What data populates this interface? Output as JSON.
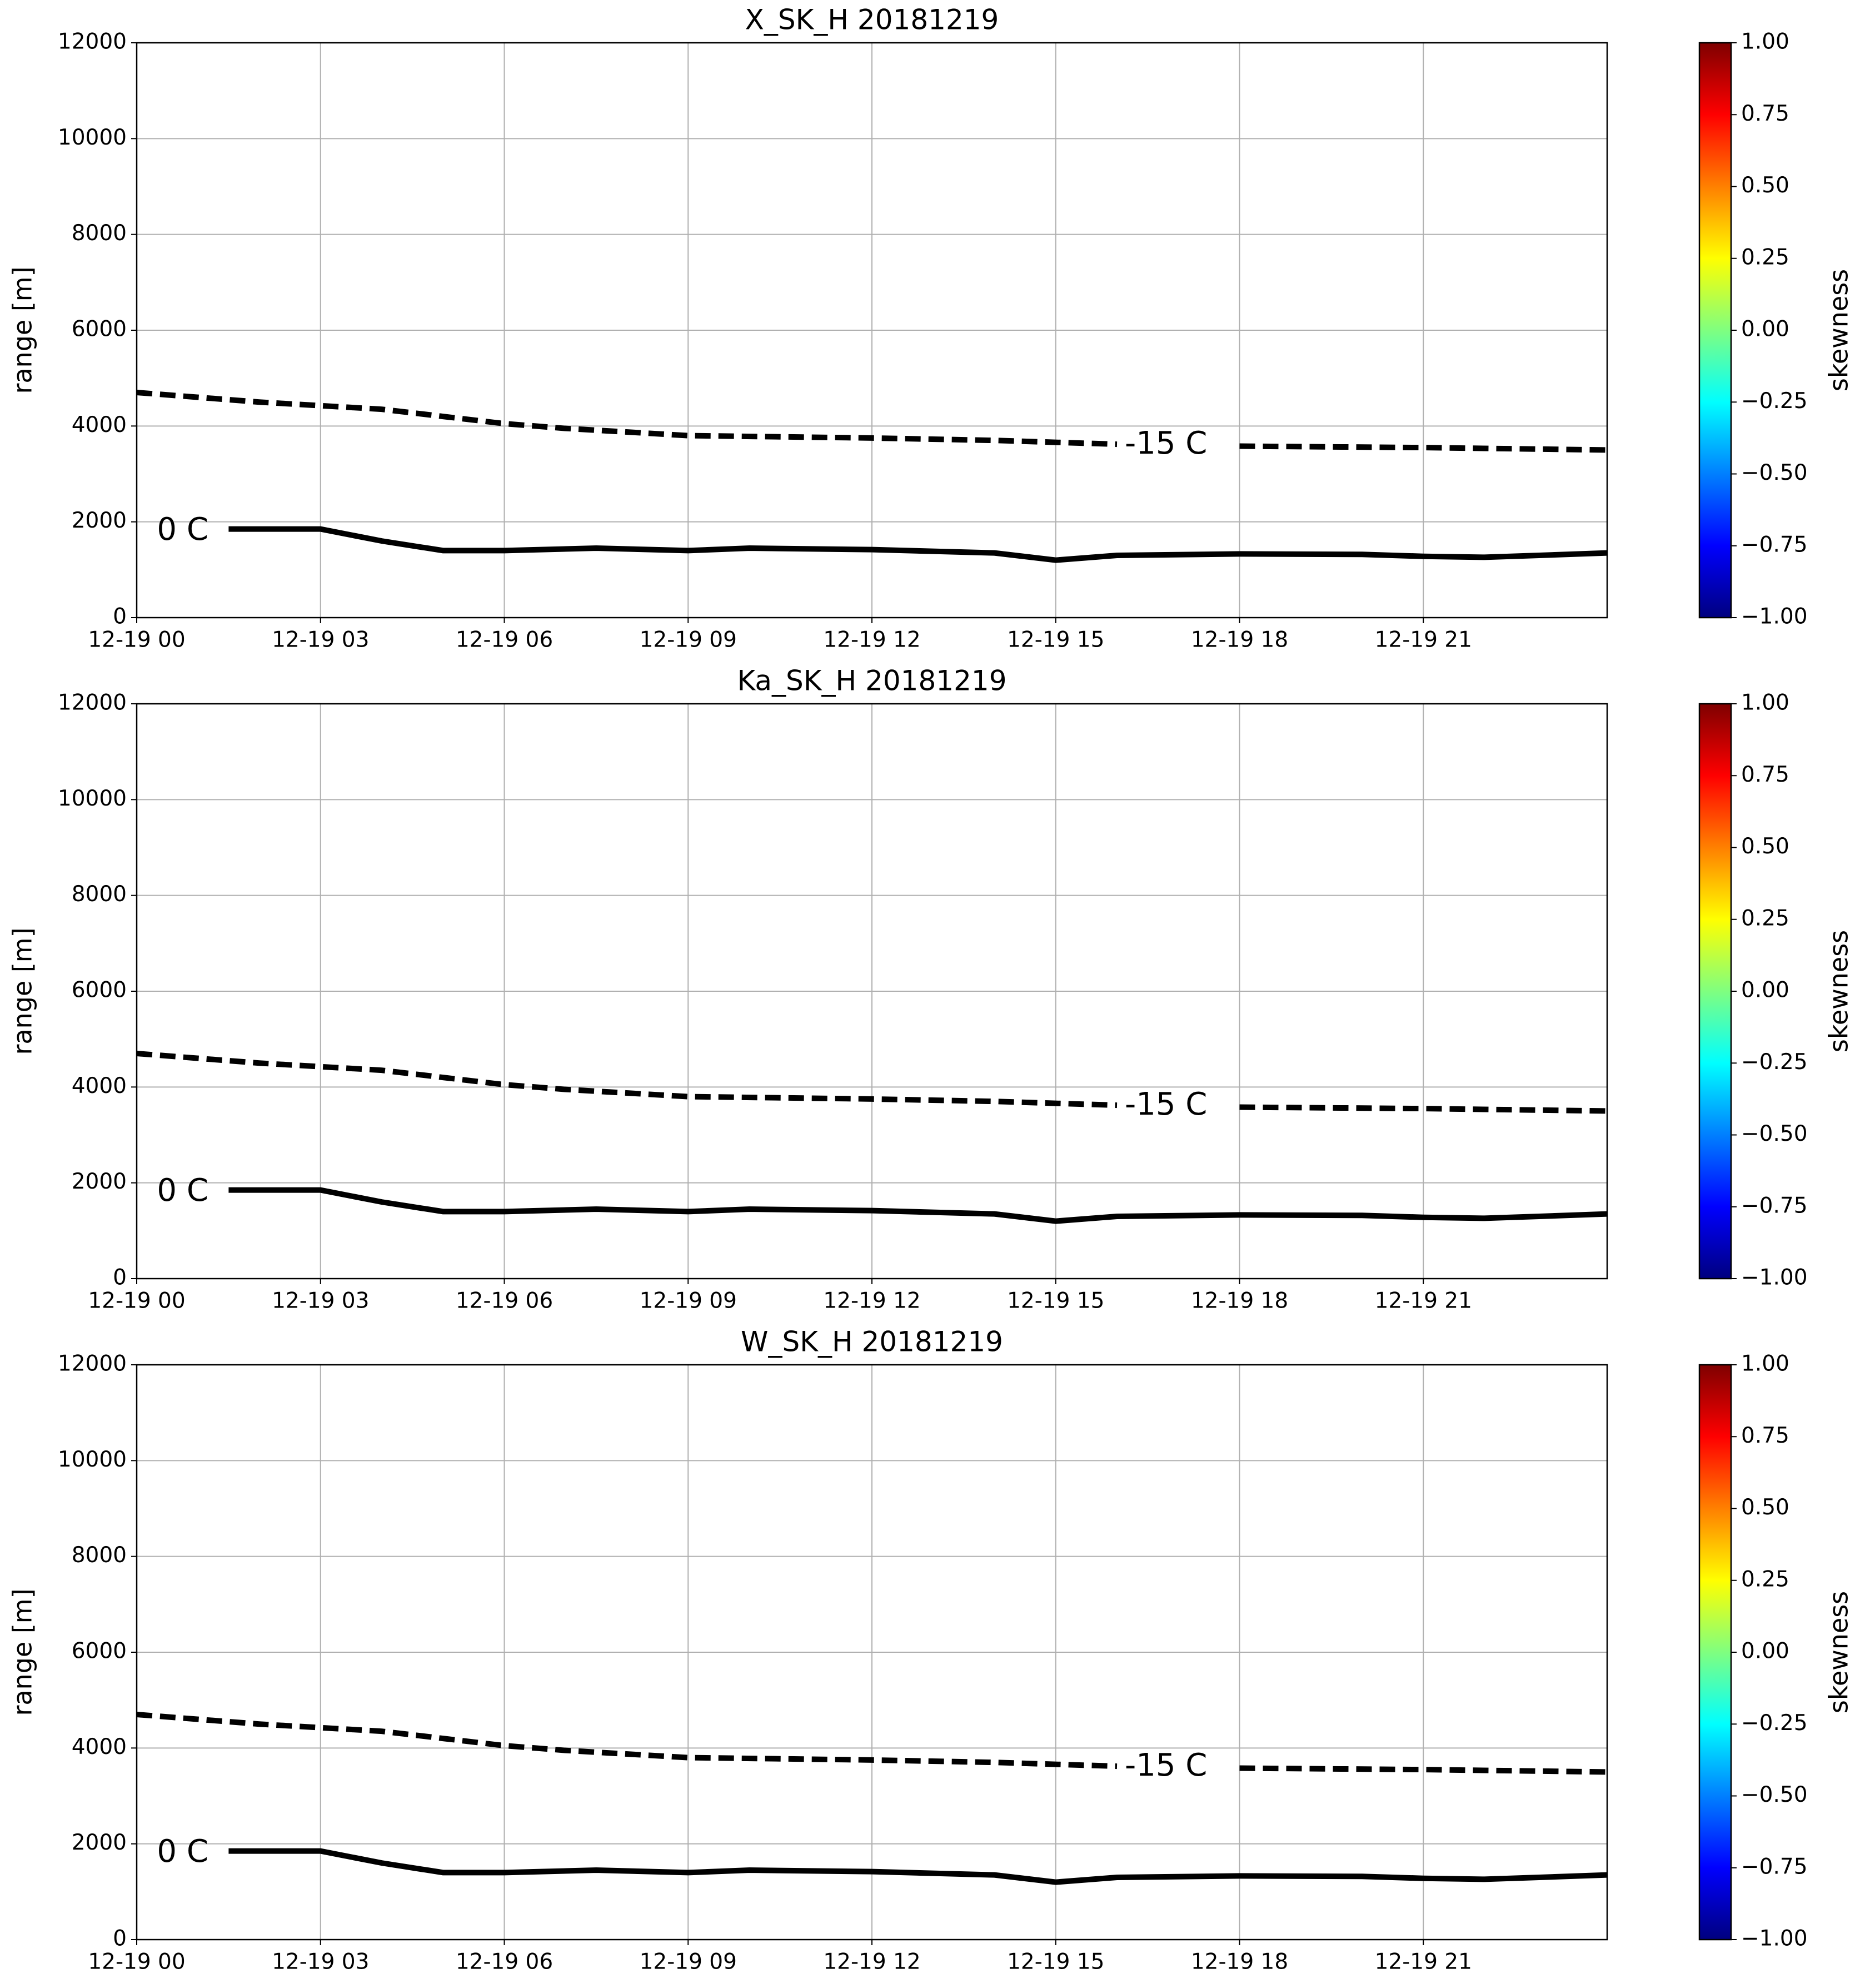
{
  "chart_data": [
    {
      "type": "line",
      "title": "X_SK_H 20181219",
      "ylabel": "range [m]",
      "xlim": [
        0,
        24
      ],
      "xticks": [
        {
          "value": 0,
          "label": "12-19 00"
        },
        {
          "value": 3,
          "label": "12-19 03"
        },
        {
          "value": 6,
          "label": "12-19 06"
        },
        {
          "value": 9,
          "label": "12-19 09"
        },
        {
          "value": 12,
          "label": "12-19 12"
        },
        {
          "value": 15,
          "label": "12-19 15"
        },
        {
          "value": 18,
          "label": "12-19 18"
        },
        {
          "value": 21,
          "label": "12-19 21"
        }
      ],
      "ylim": [
        0,
        12000
      ],
      "yticks": [
        0,
        2000,
        4000,
        6000,
        8000,
        10000,
        12000
      ],
      "grid": true,
      "series": [
        {
          "linestyle": "solid",
          "color": "#000000",
          "x": [
            1.5,
            3,
            4,
            5,
            6,
            7.5,
            9,
            10,
            12,
            14,
            15,
            16,
            18,
            20,
            21,
            22,
            24
          ],
          "values": [
            1850,
            1850,
            1600,
            1400,
            1400,
            1450,
            1400,
            1450,
            1420,
            1350,
            1200,
            1300,
            1330,
            1320,
            1280,
            1260,
            1350
          ]
        },
        {
          "linestyle": "dashed",
          "color": "#000000",
          "x": [
            0,
            2,
            4,
            5,
            6,
            7,
            9,
            12,
            14,
            16,
            17,
            18,
            21,
            24
          ],
          "values": [
            4700,
            4500,
            4350,
            4200,
            4050,
            3950,
            3800,
            3750,
            3700,
            3620,
            null,
            3580,
            3550,
            3500
          ]
        }
      ],
      "annotations": [
        {
          "text": "0 C",
          "x": 0.75,
          "y": 1800
        },
        {
          "text": "-15 C",
          "x": 16.8,
          "y": 3600
        }
      ],
      "colorbar": {
        "label": "skewness",
        "colormap": "jet",
        "lim": [
          -1,
          1
        ],
        "ticks": [
          {
            "value": -1,
            "label": "−1.00"
          },
          {
            "value": -0.75,
            "label": "−0.75"
          },
          {
            "value": -0.5,
            "label": "−0.50"
          },
          {
            "value": -0.25,
            "label": "−0.25"
          },
          {
            "value": 0,
            "label": "0.00"
          },
          {
            "value": 0.25,
            "label": "0.25"
          },
          {
            "value": 0.5,
            "label": "0.50"
          },
          {
            "value": 0.75,
            "label": "0.75"
          },
          {
            "value": 1,
            "label": "1.00"
          }
        ]
      }
    },
    {
      "type": "line",
      "title": "Ka_SK_H 20181219",
      "ylabel": "range [m]",
      "xlim": [
        0,
        24
      ],
      "xticks": [
        {
          "value": 0,
          "label": "12-19 00"
        },
        {
          "value": 3,
          "label": "12-19 03"
        },
        {
          "value": 6,
          "label": "12-19 06"
        },
        {
          "value": 9,
          "label": "12-19 09"
        },
        {
          "value": 12,
          "label": "12-19 12"
        },
        {
          "value": 15,
          "label": "12-19 15"
        },
        {
          "value": 18,
          "label": "12-19 18"
        },
        {
          "value": 21,
          "label": "12-19 21"
        }
      ],
      "ylim": [
        0,
        12000
      ],
      "yticks": [
        0,
        2000,
        4000,
        6000,
        8000,
        10000,
        12000
      ],
      "grid": true,
      "series": [
        {
          "linestyle": "solid",
          "color": "#000000",
          "x": [
            1.5,
            3,
            4,
            5,
            6,
            7.5,
            9,
            10,
            12,
            14,
            15,
            16,
            18,
            20,
            21,
            22,
            24
          ],
          "values": [
            1850,
            1850,
            1600,
            1400,
            1400,
            1450,
            1400,
            1450,
            1420,
            1350,
            1200,
            1300,
            1330,
            1320,
            1280,
            1260,
            1350
          ]
        },
        {
          "linestyle": "dashed",
          "color": "#000000",
          "x": [
            0,
            2,
            4,
            5,
            6,
            7,
            9,
            12,
            14,
            16,
            17,
            18,
            21,
            24
          ],
          "values": [
            4700,
            4500,
            4350,
            4200,
            4050,
            3950,
            3800,
            3750,
            3700,
            3620,
            null,
            3580,
            3550,
            3500
          ]
        }
      ],
      "annotations": [
        {
          "text": "0 C",
          "x": 0.75,
          "y": 1800
        },
        {
          "text": "-15 C",
          "x": 16.8,
          "y": 3600
        }
      ],
      "colorbar": {
        "label": "skewness",
        "colormap": "jet",
        "lim": [
          -1,
          1
        ],
        "ticks": [
          {
            "value": -1,
            "label": "−1.00"
          },
          {
            "value": -0.75,
            "label": "−0.75"
          },
          {
            "value": -0.5,
            "label": "−0.50"
          },
          {
            "value": -0.25,
            "label": "−0.25"
          },
          {
            "value": 0,
            "label": "0.00"
          },
          {
            "value": 0.25,
            "label": "0.25"
          },
          {
            "value": 0.5,
            "label": "0.50"
          },
          {
            "value": 0.75,
            "label": "0.75"
          },
          {
            "value": 1,
            "label": "1.00"
          }
        ]
      }
    },
    {
      "type": "line",
      "title": "W_SK_H 20181219",
      "ylabel": "range [m]",
      "xlim": [
        0,
        24
      ],
      "xticks": [
        {
          "value": 0,
          "label": "12-19 00"
        },
        {
          "value": 3,
          "label": "12-19 03"
        },
        {
          "value": 6,
          "label": "12-19 06"
        },
        {
          "value": 9,
          "label": "12-19 09"
        },
        {
          "value": 12,
          "label": "12-19 12"
        },
        {
          "value": 15,
          "label": "12-19 15"
        },
        {
          "value": 18,
          "label": "12-19 18"
        },
        {
          "value": 21,
          "label": "12-19 21"
        }
      ],
      "ylim": [
        0,
        12000
      ],
      "yticks": [
        0,
        2000,
        4000,
        6000,
        8000,
        10000,
        12000
      ],
      "grid": true,
      "series": [
        {
          "linestyle": "solid",
          "color": "#000000",
          "x": [
            1.5,
            3,
            4,
            5,
            6,
            7.5,
            9,
            10,
            12,
            14,
            15,
            16,
            18,
            20,
            21,
            22,
            24
          ],
          "values": [
            1850,
            1850,
            1600,
            1400,
            1400,
            1450,
            1400,
            1450,
            1420,
            1350,
            1200,
            1300,
            1330,
            1320,
            1280,
            1260,
            1350
          ]
        },
        {
          "linestyle": "dashed",
          "color": "#000000",
          "x": [
            0,
            2,
            4,
            5,
            6,
            7,
            9,
            12,
            14,
            16,
            17,
            18,
            21,
            24
          ],
          "values": [
            4700,
            4500,
            4350,
            4200,
            4050,
            3950,
            3800,
            3750,
            3700,
            3620,
            null,
            3580,
            3550,
            3500
          ]
        }
      ],
      "annotations": [
        {
          "text": "0 C",
          "x": 0.75,
          "y": 1800
        },
        {
          "text": "-15 C",
          "x": 16.8,
          "y": 3600
        }
      ],
      "colorbar": {
        "label": "skewness",
        "colormap": "jet",
        "lim": [
          -1,
          1
        ],
        "ticks": [
          {
            "value": -1,
            "label": "−1.00"
          },
          {
            "value": -0.75,
            "label": "−0.75"
          },
          {
            "value": -0.5,
            "label": "−0.50"
          },
          {
            "value": -0.25,
            "label": "−0.25"
          },
          {
            "value": 0,
            "label": "0.00"
          },
          {
            "value": 0.25,
            "label": "0.25"
          },
          {
            "value": 0.5,
            "label": "0.50"
          },
          {
            "value": 0.75,
            "label": "0.75"
          },
          {
            "value": 1,
            "label": "1.00"
          }
        ]
      }
    }
  ]
}
